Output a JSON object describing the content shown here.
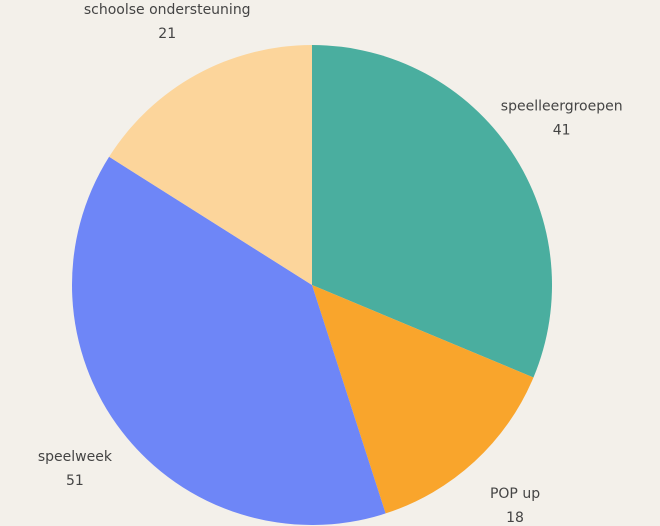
{
  "chart_data": {
    "type": "pie",
    "categories": [
      "speelleergroepen",
      "POP up",
      "speelweek",
      "schoolse ondersteuning"
    ],
    "values": [
      41,
      18,
      51,
      21
    ],
    "colors": [
      "#4aae9f",
      "#f9a52c",
      "#6e86f7",
      "#fcd59b"
    ]
  }
}
